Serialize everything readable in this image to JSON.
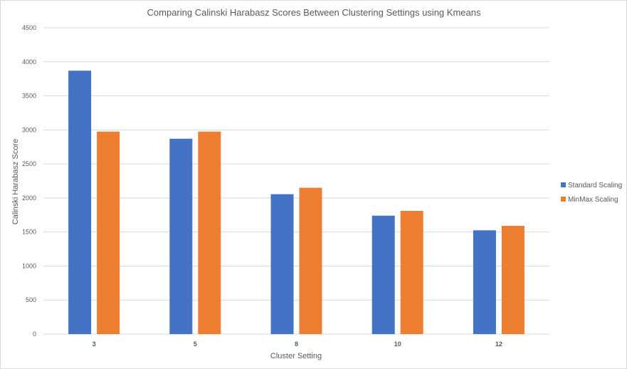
{
  "chart_data": {
    "type": "bar",
    "title": "Comparing  Calinski  Harabasz Scores Between Clustering Settings using Kmeans",
    "xlabel": "Cluster Setting",
    "ylabel": "Calinski Harabasz Score",
    "categories": [
      "3",
      "5",
      "8",
      "10",
      "12"
    ],
    "series": [
      {
        "name": "Standard Scaling",
        "values": [
          3870,
          2870,
          2055,
          1740,
          1525
        ],
        "color": "#4472c4"
      },
      {
        "name": "MinMax Scaling",
        "values": [
          2975,
          2975,
          2150,
          1810,
          1590
        ],
        "color": "#ed7d31"
      }
    ],
    "ylim": [
      0,
      4500
    ],
    "yticks": [
      "0",
      "500",
      "1000",
      "1500",
      "2000",
      "2500",
      "3000",
      "3500",
      "4000",
      "4500"
    ],
    "grid": true,
    "legend_position": "right"
  }
}
